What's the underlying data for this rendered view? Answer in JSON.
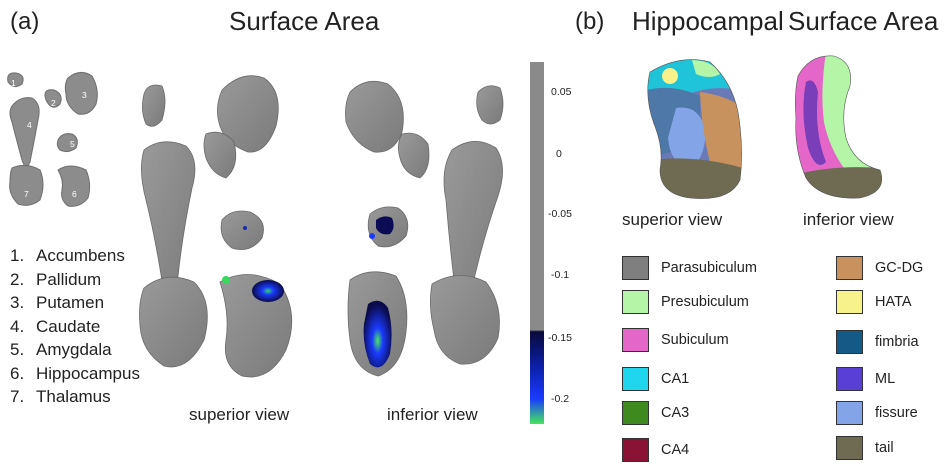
{
  "panel_a": {
    "label": "(a)",
    "title": "Surface Area",
    "key_numbers": [
      "1",
      "2",
      "3",
      "4",
      "5",
      "6",
      "7"
    ],
    "regions": [
      {
        "num": "1.",
        "name": "Accumbens"
      },
      {
        "num": "2.",
        "name": "Pallidum"
      },
      {
        "num": "3.",
        "name": "Putamen"
      },
      {
        "num": "4.",
        "name": "Caudate"
      },
      {
        "num": "5.",
        "name": "Amygdala"
      },
      {
        "num": "6.",
        "name": "Hippocampus"
      },
      {
        "num": "7.",
        "name": "Thalamus"
      }
    ],
    "views": [
      "superior view",
      "inferior view"
    ],
    "colorbar": {
      "ticks": [
        "0.05",
        "0",
        "-0.05",
        "-0.1",
        "-0.15",
        "-0.2"
      ],
      "colors": {
        "neutral": "#8a8a8a",
        "dark": "#0a0a3a",
        "mid": "#1a3aff",
        "low": "#44e65a"
      }
    }
  },
  "panel_b": {
    "label": "(b)",
    "title_1": "Hippocampal",
    "title_2": "Surface Area",
    "views": [
      "superior view",
      "inferior view"
    ],
    "legend_left": [
      {
        "label": "Parasubiculum",
        "color": "#7f7f7f"
      },
      {
        "label": "Presubiculum",
        "color": "#b4f5a8"
      },
      {
        "label": "Subiculum",
        "color": "#e466c8"
      },
      {
        "label": "CA1",
        "color": "#20d6ee"
      },
      {
        "label": "CA3",
        "color": "#3f8a1e"
      },
      {
        "label": "CA4",
        "color": "#8a1234"
      }
    ],
    "legend_right": [
      {
        "label": "GC-DG",
        "color": "#c8925e"
      },
      {
        "label": "HATA",
        "color": "#f7f28a"
      },
      {
        "label": "fimbria",
        "color": "#135a86"
      },
      {
        "label": "ML",
        "color": "#5a3fd6"
      },
      {
        "label": "fissure",
        "color": "#84a4e8"
      },
      {
        "label": "tail",
        "color": "#6f6a52"
      }
    ]
  }
}
